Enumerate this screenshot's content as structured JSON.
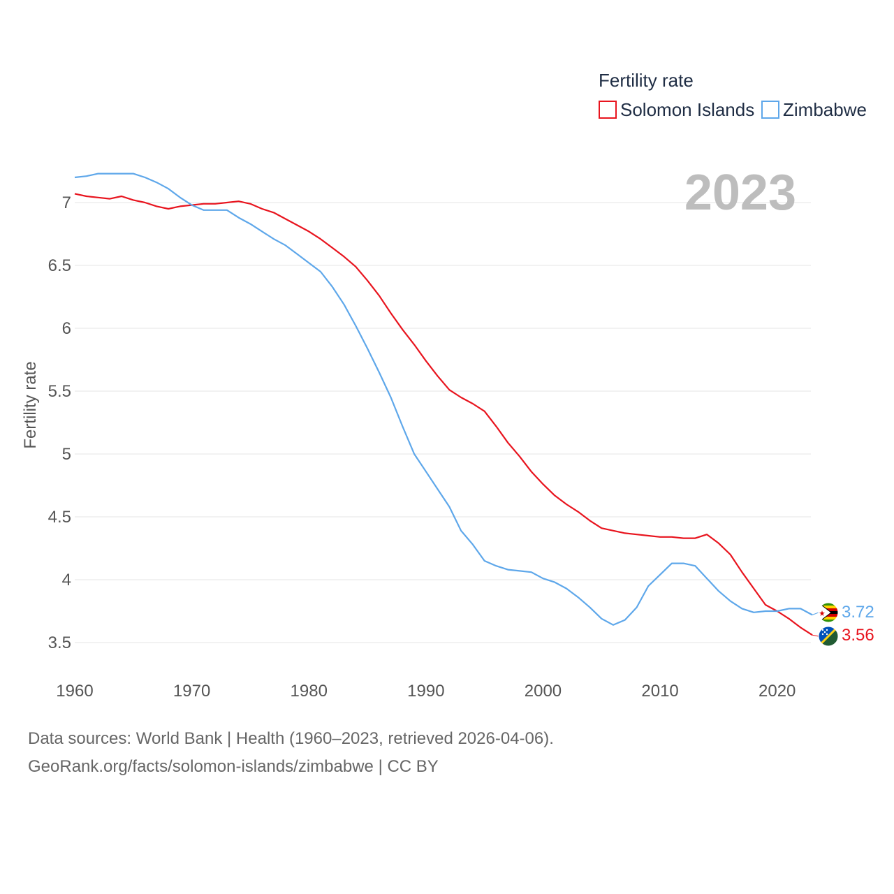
{
  "footer": {
    "sources": "Data sources: World Bank | Health (1960–2023, retrieved 2026-04-06).",
    "credit": "GeoRank.org/facts/solomon-islands/zimbabwe | CC BY"
  },
  "chart_data": {
    "type": "line",
    "title": "2023",
    "legend_title": "Fertility rate",
    "legend_position": "top-right",
    "xlabel": "",
    "ylabel": "Fertility rate",
    "xlim": [
      1960,
      2023
    ],
    "ylim": [
      3.5,
      7
    ],
    "x_ticks": [
      1960,
      1970,
      1980,
      1990,
      2000,
      2010,
      2020
    ],
    "y_ticks": [
      3.5,
      4,
      4.5,
      5,
      5.5,
      6,
      6.5,
      7
    ],
    "y_tick_labels": [
      "3.5",
      "4",
      "4.5",
      "5",
      "5.5",
      "6",
      "6.5",
      "7"
    ],
    "grid": true,
    "x": [
      1960,
      1961,
      1962,
      1963,
      1964,
      1965,
      1966,
      1967,
      1968,
      1969,
      1970,
      1971,
      1972,
      1973,
      1974,
      1975,
      1976,
      1977,
      1978,
      1979,
      1980,
      1981,
      1982,
      1983,
      1984,
      1985,
      1986,
      1987,
      1988,
      1989,
      1990,
      1991,
      1992,
      1993,
      1994,
      1995,
      1996,
      1997,
      1998,
      1999,
      2000,
      2001,
      2002,
      2003,
      2004,
      2005,
      2006,
      2007,
      2008,
      2009,
      2010,
      2011,
      2012,
      2013,
      2014,
      2015,
      2016,
      2017,
      2018,
      2019,
      2020,
      2021,
      2022,
      2023
    ],
    "series": [
      {
        "name": "Solomon Islands",
        "color": "#e8141e",
        "end_label": "3.56",
        "flag": "solomon-islands-flag",
        "values": [
          7.07,
          7.05,
          7.04,
          7.03,
          7.05,
          7.02,
          7.0,
          6.97,
          6.95,
          6.97,
          6.98,
          6.99,
          6.99,
          7.0,
          7.01,
          6.99,
          6.95,
          6.92,
          6.87,
          6.82,
          6.77,
          6.71,
          6.64,
          6.57,
          6.49,
          6.38,
          6.26,
          6.12,
          5.99,
          5.87,
          5.74,
          5.62,
          5.51,
          5.45,
          5.4,
          5.34,
          5.22,
          5.09,
          4.98,
          4.86,
          4.76,
          4.67,
          4.6,
          4.54,
          4.47,
          4.41,
          4.39,
          4.37,
          4.36,
          4.35,
          4.34,
          4.34,
          4.33,
          4.33,
          4.36,
          4.29,
          4.2,
          4.06,
          3.93,
          3.8,
          3.75,
          3.69,
          3.62,
          3.56
        ]
      },
      {
        "name": "Zimbabwe",
        "color": "#5ea7ea",
        "end_label": "3.72",
        "flag": "zimbabwe-flag",
        "values": [
          7.2,
          7.21,
          7.23,
          7.23,
          7.23,
          7.23,
          7.2,
          7.16,
          7.11,
          7.04,
          6.98,
          6.94,
          6.94,
          6.94,
          6.88,
          6.83,
          6.77,
          6.71,
          6.66,
          6.59,
          6.52,
          6.45,
          6.33,
          6.19,
          6.02,
          5.84,
          5.65,
          5.45,
          5.22,
          5.0,
          4.86,
          4.72,
          4.58,
          4.39,
          4.28,
          4.15,
          4.11,
          4.08,
          4.07,
          4.06,
          4.01,
          3.98,
          3.93,
          3.86,
          3.78,
          3.69,
          3.64,
          3.68,
          3.78,
          3.95,
          4.04,
          4.13,
          4.13,
          4.11,
          4.01,
          3.91,
          3.83,
          3.77,
          3.74,
          3.75,
          3.75,
          3.77,
          3.77,
          3.72
        ]
      }
    ]
  }
}
